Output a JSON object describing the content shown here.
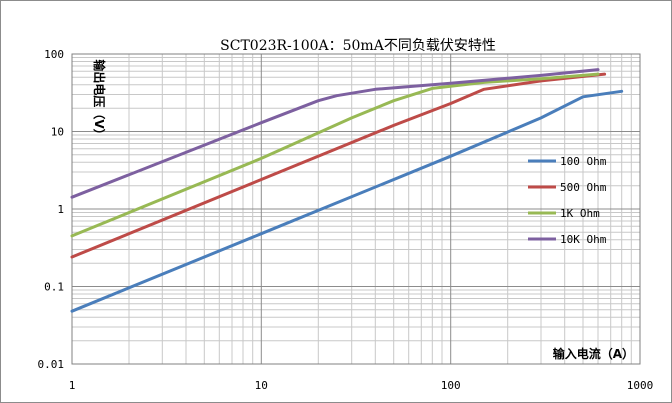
{
  "chart_data": {
    "type": "line",
    "title": "SCT023R-100A：50mA不同负载伏安特性",
    "xlabel": "输入电流（A）",
    "ylabel": "输出电压（V）",
    "xscale": "log",
    "yscale": "log",
    "xlim": [
      1,
      1000
    ],
    "ylim": [
      0.01,
      100
    ],
    "x_ticks": [
      "1",
      "10",
      "100",
      "1000"
    ],
    "y_ticks": [
      "0.01",
      "0.1",
      "1",
      "10",
      "100"
    ],
    "grid": true,
    "legend_position": "right",
    "series": [
      {
        "name": "100 Ohm",
        "color": "#4a7ebb",
        "points": [
          [
            1,
            0.048
          ],
          [
            10,
            0.48
          ],
          [
            100,
            4.8
          ],
          [
            300,
            15
          ],
          [
            500,
            28
          ],
          [
            800,
            33
          ]
        ]
      },
      {
        "name": "500 Ohm",
        "color": "#be4b48",
        "points": [
          [
            1,
            0.24
          ],
          [
            10,
            2.4
          ],
          [
            50,
            12
          ],
          [
            100,
            23
          ],
          [
            150,
            35
          ],
          [
            300,
            45
          ],
          [
            650,
            55
          ]
        ]
      },
      {
        "name": "1K Ohm",
        "color": "#98b954",
        "points": [
          [
            1,
            0.45
          ],
          [
            10,
            4.5
          ],
          [
            30,
            15
          ],
          [
            50,
            25
          ],
          [
            80,
            36
          ],
          [
            150,
            43
          ],
          [
            300,
            48
          ],
          [
            600,
            55
          ]
        ]
      },
      {
        "name": "10K Ohm",
        "color": "#7d60a0",
        "points": [
          [
            1,
            1.42
          ],
          [
            10,
            13
          ],
          [
            20,
            25
          ],
          [
            25,
            29
          ],
          [
            40,
            35
          ],
          [
            100,
            42
          ],
          [
            300,
            53
          ],
          [
            600,
            63
          ]
        ]
      }
    ]
  }
}
